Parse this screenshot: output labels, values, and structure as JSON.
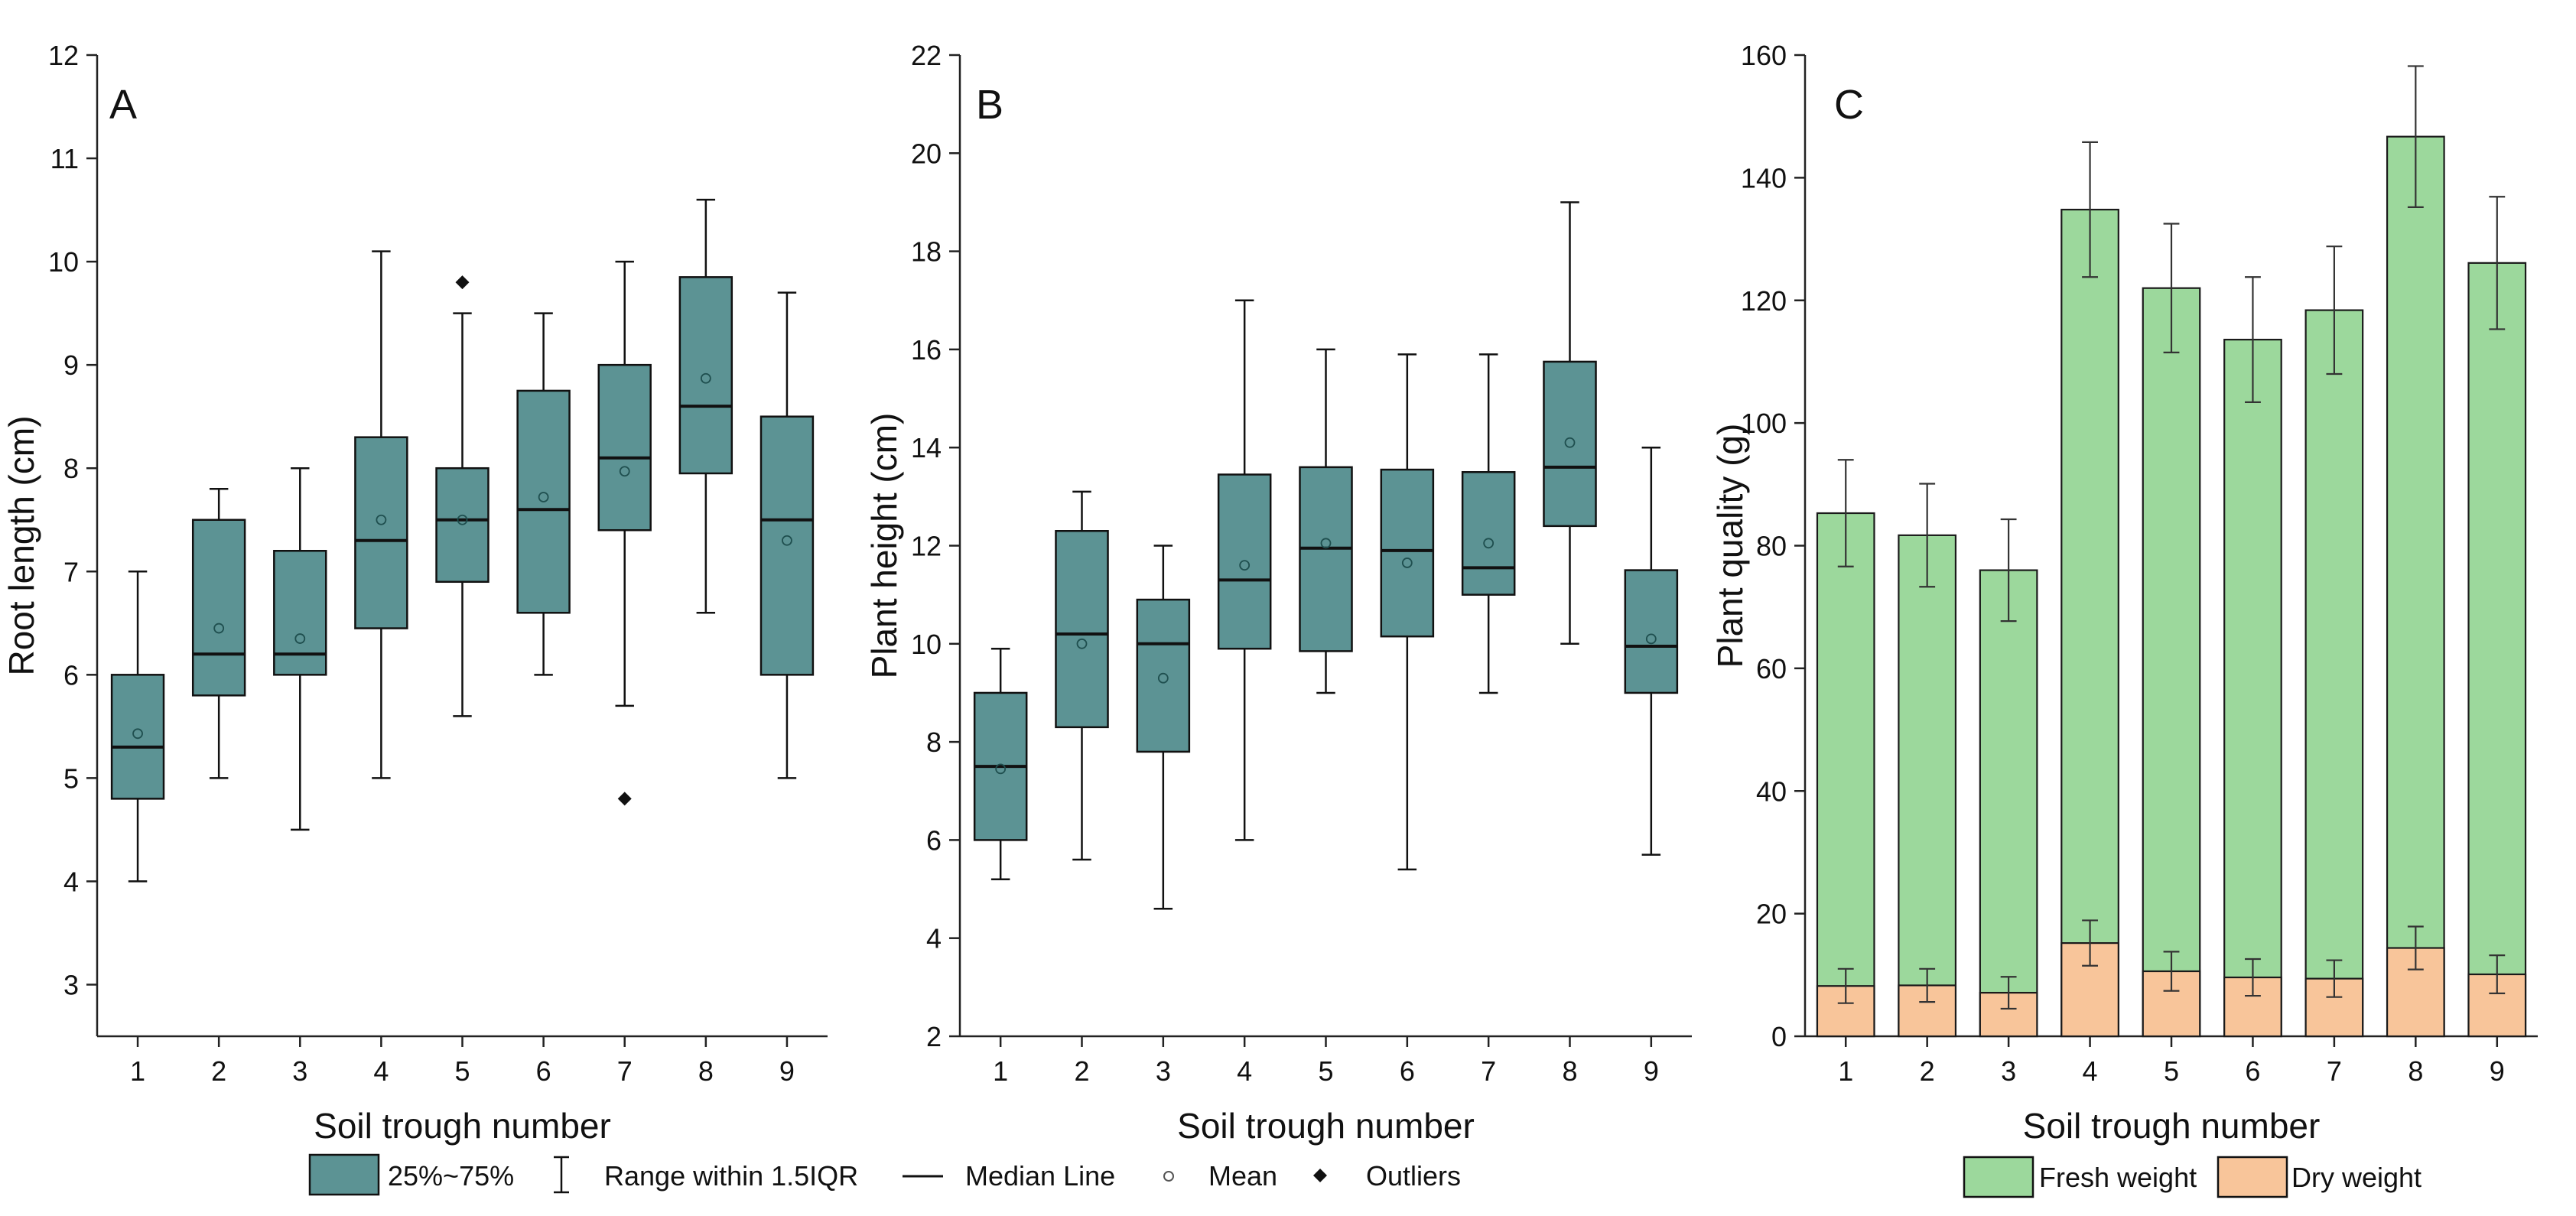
{
  "colors": {
    "box_fill": "#5c9394",
    "fresh_weight": "#9cd89c",
    "dry_weight": "#f8c59a",
    "axis": "#222222"
  },
  "legend_box": {
    "iqr_label": "25%~75%",
    "range_label": "Range within 1.5IQR",
    "median_label": "Median Line",
    "mean_label": "Mean",
    "outlier_label": "Outliers"
  },
  "legend_bar": {
    "fresh_label": "Fresh weight",
    "dry_label": "Dry weight"
  },
  "chart_data": [
    {
      "type": "box",
      "panel": "A",
      "xlabel": "Soil trough number",
      "ylabel": "Root length (cm)",
      "ylim": [
        2.5,
        12
      ],
      "yticks": [
        3,
        4,
        5,
        6,
        7,
        8,
        9,
        10,
        11,
        12
      ],
      "categories": [
        "1",
        "2",
        "3",
        "4",
        "5",
        "6",
        "7",
        "8",
        "9"
      ],
      "boxes": [
        {
          "min": 4.0,
          "q1": 4.8,
          "median": 5.3,
          "q3": 6.0,
          "max": 7.0,
          "mean": 5.43,
          "outliers": []
        },
        {
          "min": 5.0,
          "q1": 5.8,
          "median": 6.2,
          "q3": 7.5,
          "max": 7.8,
          "mean": 6.45,
          "outliers": []
        },
        {
          "min": 4.5,
          "q1": 6.0,
          "median": 6.2,
          "q3": 7.2,
          "max": 8.0,
          "mean": 6.35,
          "outliers": []
        },
        {
          "min": 5.0,
          "q1": 6.45,
          "median": 7.3,
          "q3": 8.3,
          "max": 10.1,
          "mean": 7.5,
          "outliers": []
        },
        {
          "min": 5.6,
          "q1": 6.9,
          "median": 7.5,
          "q3": 8.0,
          "max": 9.5,
          "mean": 7.5,
          "outliers": [
            9.8
          ]
        },
        {
          "min": 6.0,
          "q1": 6.6,
          "median": 7.6,
          "q3": 8.75,
          "max": 9.5,
          "mean": 7.72,
          "outliers": []
        },
        {
          "min": 5.7,
          "q1": 7.4,
          "median": 8.1,
          "q3": 9.0,
          "max": 10.0,
          "mean": 7.97,
          "outliers": [
            4.8
          ]
        },
        {
          "min": 6.6,
          "q1": 7.95,
          "median": 8.6,
          "q3": 9.85,
          "max": 10.6,
          "mean": 8.87,
          "outliers": []
        },
        {
          "min": 5.0,
          "q1": 6.0,
          "median": 7.5,
          "q3": 8.5,
          "max": 9.7,
          "mean": 7.3,
          "outliers": []
        }
      ]
    },
    {
      "type": "box",
      "panel": "B",
      "xlabel": "Soil trough number",
      "ylabel": "Plant height (cm)",
      "ylim": [
        2,
        22
      ],
      "yticks": [
        2,
        4,
        6,
        8,
        10,
        12,
        14,
        16,
        18,
        20,
        22
      ],
      "categories": [
        "1",
        "2",
        "3",
        "4",
        "5",
        "6",
        "7",
        "8",
        "9"
      ],
      "boxes": [
        {
          "min": 5.2,
          "q1": 6.0,
          "median": 7.5,
          "q3": 9.0,
          "max": 9.9,
          "mean": 7.45,
          "outliers": []
        },
        {
          "min": 5.6,
          "q1": 8.3,
          "median": 10.2,
          "q3": 12.3,
          "max": 13.1,
          "mean": 10.0,
          "outliers": []
        },
        {
          "min": 4.6,
          "q1": 7.8,
          "median": 10.0,
          "q3": 10.9,
          "max": 12.0,
          "mean": 9.3,
          "outliers": []
        },
        {
          "min": 6.0,
          "q1": 9.9,
          "median": 11.3,
          "q3": 13.45,
          "max": 17.0,
          "mean": 11.6,
          "outliers": []
        },
        {
          "min": 9.0,
          "q1": 9.85,
          "median": 11.95,
          "q3": 13.6,
          "max": 16.0,
          "mean": 12.05,
          "outliers": []
        },
        {
          "min": 5.4,
          "q1": 10.15,
          "median": 11.9,
          "q3": 13.55,
          "max": 15.9,
          "mean": 11.65,
          "outliers": []
        },
        {
          "min": 9.0,
          "q1": 11.0,
          "median": 11.55,
          "q3": 13.5,
          "max": 15.9,
          "mean": 12.05,
          "outliers": []
        },
        {
          "min": 10.0,
          "q1": 12.4,
          "median": 13.6,
          "q3": 15.75,
          "max": 19.0,
          "mean": 14.1,
          "outliers": []
        },
        {
          "min": 5.7,
          "q1": 9.0,
          "median": 9.95,
          "q3": 11.5,
          "max": 14.0,
          "mean": 10.1,
          "outliers": []
        }
      ]
    },
    {
      "type": "stacked_bar",
      "panel": "C",
      "xlabel": "Soil trough number",
      "ylabel": "Plant quality (g)",
      "ylim": [
        0,
        160
      ],
      "yticks": [
        0,
        20,
        40,
        60,
        80,
        100,
        120,
        140,
        160
      ],
      "categories": [
        "1",
        "2",
        "3",
        "4",
        "5",
        "6",
        "7",
        "8",
        "9"
      ],
      "series": [
        {
          "name": "Fresh weight",
          "values": [
            85.3,
            81.7,
            76.0,
            134.8,
            122.0,
            113.6,
            118.4,
            146.7,
            126.1
          ],
          "errors": [
            8.7,
            8.4,
            8.3,
            11.0,
            10.5,
            10.2,
            10.4,
            11.5,
            10.8
          ]
        },
        {
          "name": "Dry weight",
          "values": [
            8.2,
            8.3,
            7.1,
            15.2,
            10.6,
            9.6,
            9.4,
            14.4,
            10.1
          ],
          "errors": [
            2.8,
            2.7,
            2.6,
            3.7,
            3.2,
            3.0,
            3.0,
            3.5,
            3.1
          ]
        }
      ]
    }
  ]
}
